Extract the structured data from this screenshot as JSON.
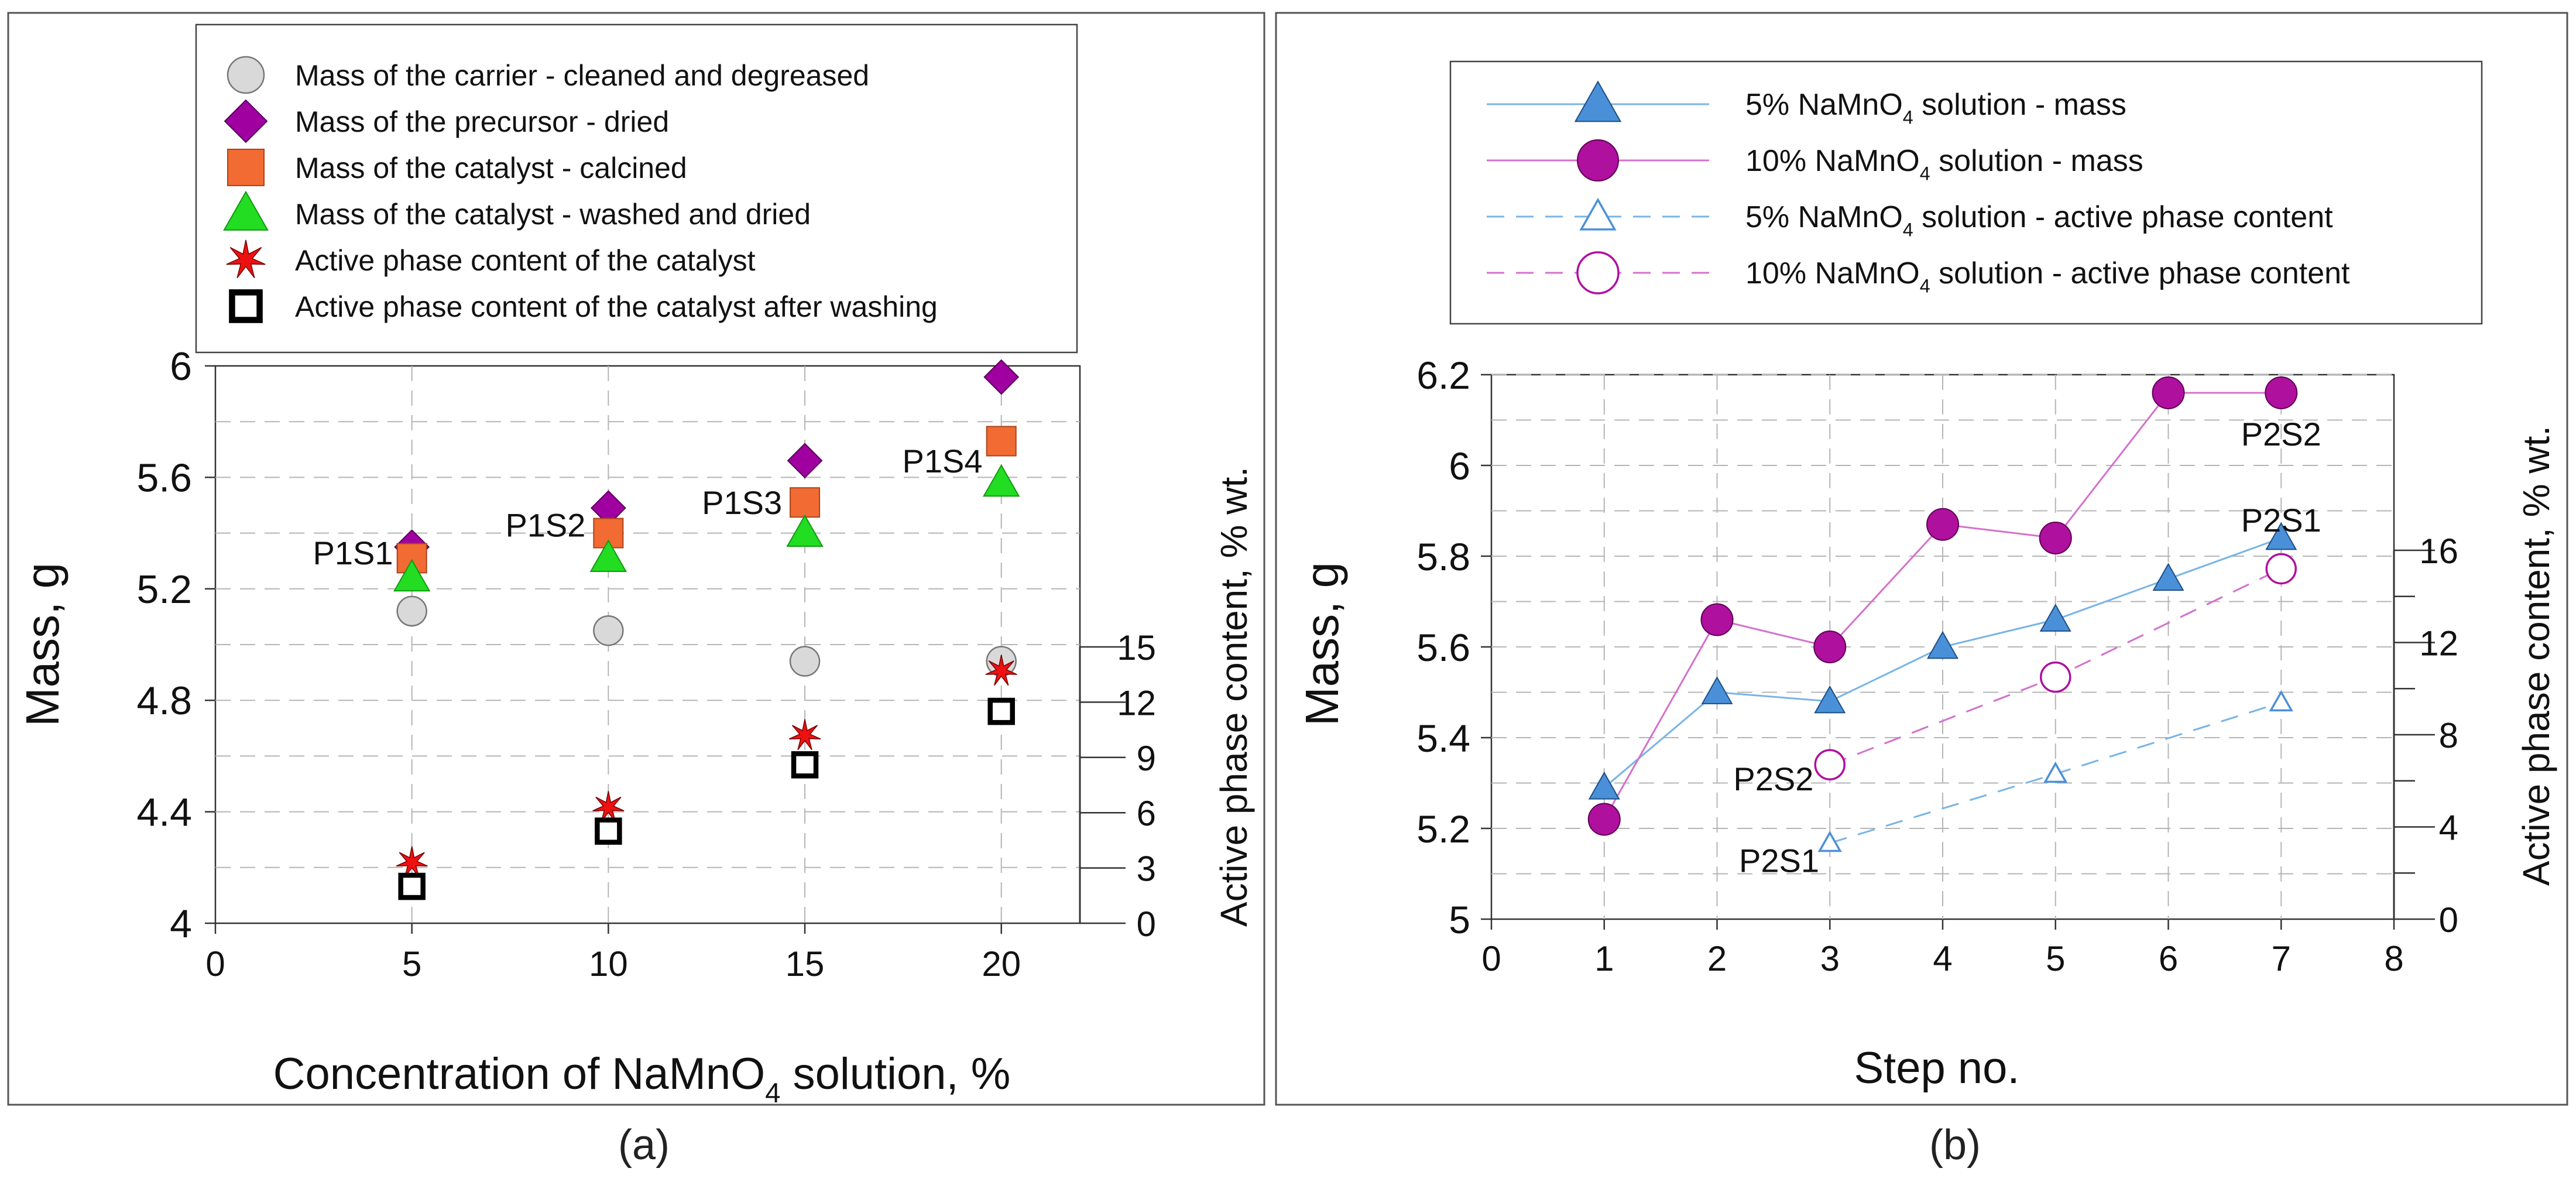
{
  "panel_captions": {
    "a": "(a)",
    "b": "(b)"
  },
  "colors": {
    "carrier": "#d9d9d9",
    "precursor": "#a100a1",
    "calcined": "#f26b33",
    "washed": "#22dd22",
    "active": "#ee1111",
    "m5": "#4a90d9",
    "m10": "#b0109e",
    "line5": "#78b4e6",
    "line10": "#d470cc"
  },
  "chart_data": [
    {
      "id": "a",
      "type": "scatter",
      "title": "",
      "xlabel": {
        "pre": "Concentration of NaMnO",
        "sub": "4",
        "post": " solution, %"
      },
      "ylabel": "Mass, g",
      "y2label": "Active phase content, % wt.",
      "xlim": [
        0,
        22
      ],
      "ylim": [
        4,
        6
      ],
      "y2lim": [
        0,
        15
      ],
      "xticks": [
        0,
        5,
        10,
        15,
        20
      ],
      "yticks": [
        4,
        4.4,
        4.8,
        5.2,
        5.6,
        6
      ],
      "ytick_labels": [
        "4",
        "4.4",
        "4.8",
        "5.2",
        "5.6",
        "6"
      ],
      "y2ticks": [
        0,
        3,
        6,
        9,
        12,
        15
      ],
      "legend": [
        {
          "key": "carrier",
          "label": "Mass of the carrier - cleaned and degreased"
        },
        {
          "key": "precursor",
          "label": "Mass of  the precursor - dried"
        },
        {
          "key": "calcined",
          "label": "Mass of the catalyst - calcined"
        },
        {
          "key": "washed",
          "label": "Mass of the catalyst - washed and dried"
        },
        {
          "key": "active",
          "label": "Active phase content of the catalyst"
        },
        {
          "key": "active_washed",
          "label": "Active phase content of the catalyst after washing"
        }
      ],
      "x": [
        5,
        10,
        15,
        20
      ],
      "series": [
        {
          "key": "carrier",
          "name": "Mass of the carrier - cleaned and degreased",
          "axis": "y",
          "values": [
            5.12,
            5.05,
            4.94,
            4.94
          ]
        },
        {
          "key": "precursor",
          "name": "Mass of  the precursor - dried",
          "axis": "y",
          "values": [
            5.35,
            5.49,
            5.66,
            5.96
          ]
        },
        {
          "key": "calcined",
          "name": "Mass of the catalyst - calcined",
          "axis": "y",
          "values": [
            5.31,
            5.4,
            5.51,
            5.73
          ]
        },
        {
          "key": "washed",
          "name": "Mass of the catalyst - washed and dried",
          "axis": "y",
          "values": [
            5.24,
            5.31,
            5.4,
            5.58
          ]
        },
        {
          "key": "active",
          "name": "Active phase content of the catalyst",
          "axis": "y2",
          "values": [
            3.3,
            6.3,
            10.2,
            13.7
          ]
        },
        {
          "key": "active_washed",
          "name": "Active phase content of the catalyst after washing",
          "axis": "y2",
          "values": [
            2.0,
            5.0,
            8.6,
            11.5
          ]
        }
      ],
      "annotations": [
        {
          "text": "P1S1",
          "x": 3.5,
          "y": 5.33
        },
        {
          "text": "P1S2",
          "x": 8.4,
          "y": 5.43
        },
        {
          "text": "P1S3",
          "x": 13.4,
          "y": 5.51
        },
        {
          "text": "P1S4",
          "x": 18.5,
          "y": 5.66
        }
      ]
    },
    {
      "id": "b",
      "type": "line",
      "title": "",
      "xlabel": "Step no.",
      "ylabel": "Mass, g",
      "y2label": "Active phase content, % wt.",
      "xlim": [
        0,
        8
      ],
      "ylim": [
        5,
        6.2
      ],
      "y2lim": [
        0,
        16
      ],
      "xticks": [
        0,
        1,
        2,
        3,
        4,
        5,
        6,
        7,
        8
      ],
      "yticks": [
        5,
        5.2,
        5.4,
        5.6,
        5.8,
        6,
        6.2
      ],
      "ytick_labels": [
        "5",
        "5.2",
        "5.4",
        "5.6",
        "5.8",
        "6",
        "6.2"
      ],
      "y2ticks": [
        0,
        4,
        8,
        12,
        16
      ],
      "legend": [
        {
          "key": "m5",
          "pre": "5% NaMnO",
          "sub": "4",
          "post": " solution - mass"
        },
        {
          "key": "m10",
          "pre": "10% NaMnO",
          "sub": "4",
          "post": " solution - mass"
        },
        {
          "key": "a5",
          "pre": "5% NaMnO",
          "sub": "4",
          "post": " solution  - active phase content"
        },
        {
          "key": "a10",
          "pre": "10% NaMnO",
          "sub": "4",
          "post": " solution - active phase content"
        }
      ],
      "series": [
        {
          "key": "m5",
          "name": "5% NaMnO4 solution - mass",
          "axis": "y",
          "x": [
            1,
            2,
            3,
            4,
            5,
            6,
            7
          ],
          "values": [
            5.29,
            5.5,
            5.48,
            5.6,
            5.66,
            5.75,
            5.84
          ]
        },
        {
          "key": "m10",
          "name": "10% NaMnO4 solution - mass",
          "axis": "y",
          "x": [
            1,
            2,
            3,
            4,
            5,
            6,
            7
          ],
          "values": [
            5.22,
            5.66,
            5.6,
            5.87,
            5.84,
            6.16,
            6.16
          ]
        },
        {
          "key": "a5",
          "name": "5% NaMnO4 solution  - active phase content",
          "axis": "y2",
          "x": [
            3,
            5,
            7
          ],
          "values": [
            3.3,
            6.3,
            9.4
          ]
        },
        {
          "key": "a10",
          "name": "10% NaMnO4 solution - active phase content",
          "axis": "y2",
          "x": [
            3,
            5,
            7
          ],
          "values": [
            6.7,
            10.5,
            15.2
          ]
        }
      ],
      "annotations": [
        {
          "text": "P2S2",
          "x": 7.0,
          "y": 6.07
        },
        {
          "text": "P2S1",
          "x": 7.0,
          "y": 5.88
        },
        {
          "text": "P2S2",
          "x": 2.5,
          "y": 5.31
        },
        {
          "text": "P2S1",
          "x": 2.55,
          "y": 5.13
        }
      ]
    }
  ]
}
